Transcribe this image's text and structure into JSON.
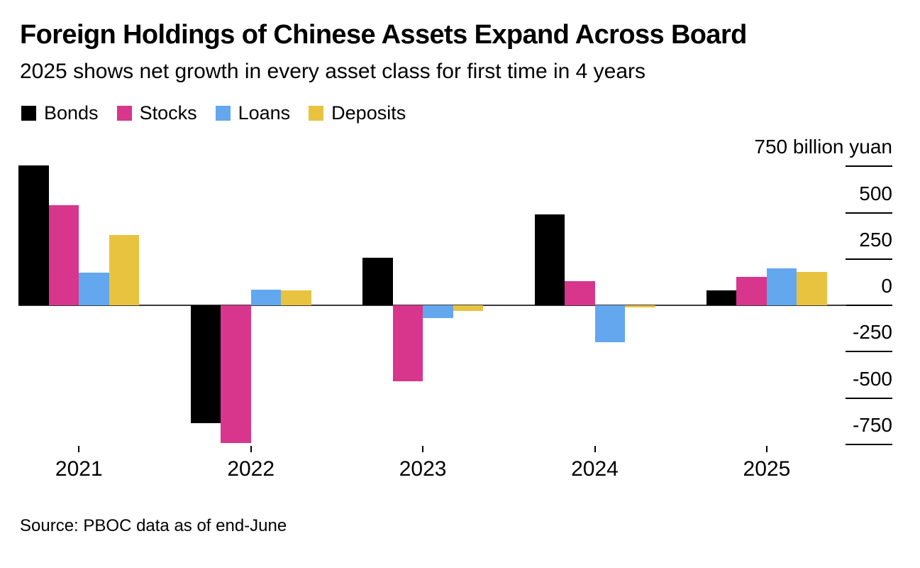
{
  "chart_data": {
    "type": "bar",
    "title": "Foreign Holdings of Chinese Assets Expand Across Board",
    "subtitle": "2025 shows net growth in every asset class for first time in 4 years",
    "unit": "billion yuan",
    "categories": [
      "2021",
      "2022",
      "2023",
      "2024",
      "2025"
    ],
    "series": [
      {
        "name": "Bonds",
        "color": "#000000",
        "values": [
          755,
          -635,
          255,
          490,
          80
        ]
      },
      {
        "name": "Stocks",
        "color": "#d7368c",
        "values": [
          540,
          -745,
          -410,
          130,
          155
        ]
      },
      {
        "name": "Loans",
        "color": "#63a7ee",
        "values": [
          175,
          85,
          -70,
          -200,
          200
        ]
      },
      {
        "name": "Deposits",
        "color": "#e8c33f",
        "values": [
          380,
          80,
          -30,
          -10,
          180
        ]
      }
    ],
    "ylim": [
      -750,
      750
    ],
    "yticks": [
      {
        "value": 750,
        "label": "750 billion yuan"
      },
      {
        "value": 500,
        "label": "500"
      },
      {
        "value": 250,
        "label": "250"
      },
      {
        "value": 0,
        "label": "0"
      },
      {
        "value": -250,
        "label": "-250"
      },
      {
        "value": -500,
        "label": "-500"
      },
      {
        "value": -750,
        "label": "-750"
      }
    ],
    "axis_side": "right",
    "grid": false,
    "legend_position": "top-left"
  },
  "source": {
    "text": "Source: PBOC data as of end-June"
  }
}
